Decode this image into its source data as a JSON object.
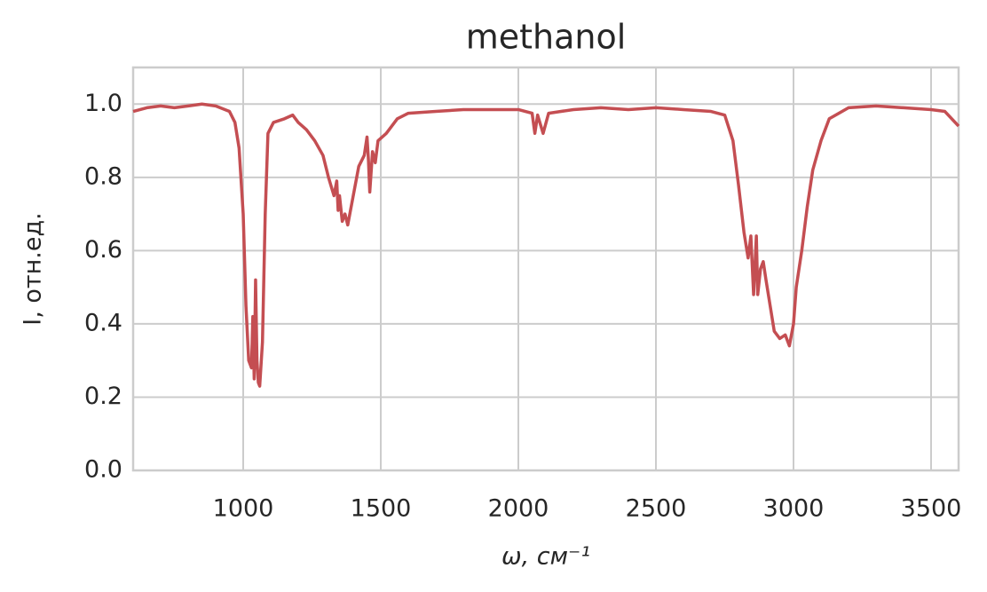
{
  "chart_data": {
    "type": "line",
    "title": "methanol",
    "x_label": "ω, см⁻¹",
    "y_label": "I, отн.ед.",
    "x": [
      600,
      650,
      700,
      750,
      800,
      850,
      900,
      950,
      970,
      985,
      1000,
      1010,
      1020,
      1030,
      1035,
      1040,
      1045,
      1050,
      1055,
      1060,
      1070,
      1080,
      1090,
      1110,
      1150,
      1180,
      1200,
      1230,
      1260,
      1290,
      1310,
      1330,
      1340,
      1345,
      1350,
      1360,
      1370,
      1380,
      1400,
      1420,
      1440,
      1450,
      1455,
      1460,
      1470,
      1480,
      1490,
      1520,
      1560,
      1600,
      1700,
      1800,
      1900,
      2000,
      2050,
      2060,
      2070,
      2090,
      2110,
      2200,
      2300,
      2400,
      2500,
      2600,
      2700,
      2750,
      2780,
      2800,
      2820,
      2835,
      2845,
      2855,
      2865,
      2870,
      2880,
      2890,
      2900,
      2915,
      2930,
      2950,
      2970,
      2985,
      3000,
      3010,
      3030,
      3050,
      3070,
      3100,
      3130,
      3200,
      3300,
      3400,
      3500,
      3550,
      3600
    ],
    "series": [
      {
        "color": "#c44e52",
        "values": [
          0.98,
          0.99,
          0.995,
          0.99,
          0.995,
          1.0,
          0.995,
          0.98,
          0.95,
          0.88,
          0.7,
          0.45,
          0.3,
          0.28,
          0.42,
          0.25,
          0.52,
          0.3,
          0.24,
          0.23,
          0.35,
          0.7,
          0.92,
          0.95,
          0.96,
          0.97,
          0.95,
          0.93,
          0.9,
          0.86,
          0.8,
          0.75,
          0.79,
          0.71,
          0.75,
          0.68,
          0.7,
          0.67,
          0.75,
          0.83,
          0.86,
          0.91,
          0.85,
          0.76,
          0.87,
          0.84,
          0.9,
          0.92,
          0.96,
          0.975,
          0.98,
          0.985,
          0.985,
          0.985,
          0.975,
          0.92,
          0.97,
          0.92,
          0.975,
          0.985,
          0.99,
          0.985,
          0.99,
          0.985,
          0.98,
          0.97,
          0.9,
          0.78,
          0.65,
          0.58,
          0.64,
          0.48,
          0.64,
          0.48,
          0.55,
          0.57,
          0.52,
          0.45,
          0.38,
          0.36,
          0.37,
          0.34,
          0.4,
          0.5,
          0.6,
          0.72,
          0.82,
          0.9,
          0.96,
          0.99,
          0.995,
          0.99,
          0.985,
          0.98,
          0.94
        ]
      }
    ],
    "xlim": [
      600,
      3600
    ],
    "ylim": [
      0,
      1.1
    ],
    "xticks": [
      1000,
      1500,
      2000,
      2500,
      3000,
      3500
    ],
    "yticks": [
      {
        "value": 0,
        "label": "0.0"
      },
      {
        "value": 0.2,
        "label": "0.2"
      },
      {
        "value": 0.4,
        "label": "0.4"
      },
      {
        "value": 0.6,
        "label": "0.6"
      },
      {
        "value": 0.8,
        "label": "0.8"
      },
      {
        "value": 1,
        "label": "1.0"
      }
    ],
    "grid": true
  }
}
